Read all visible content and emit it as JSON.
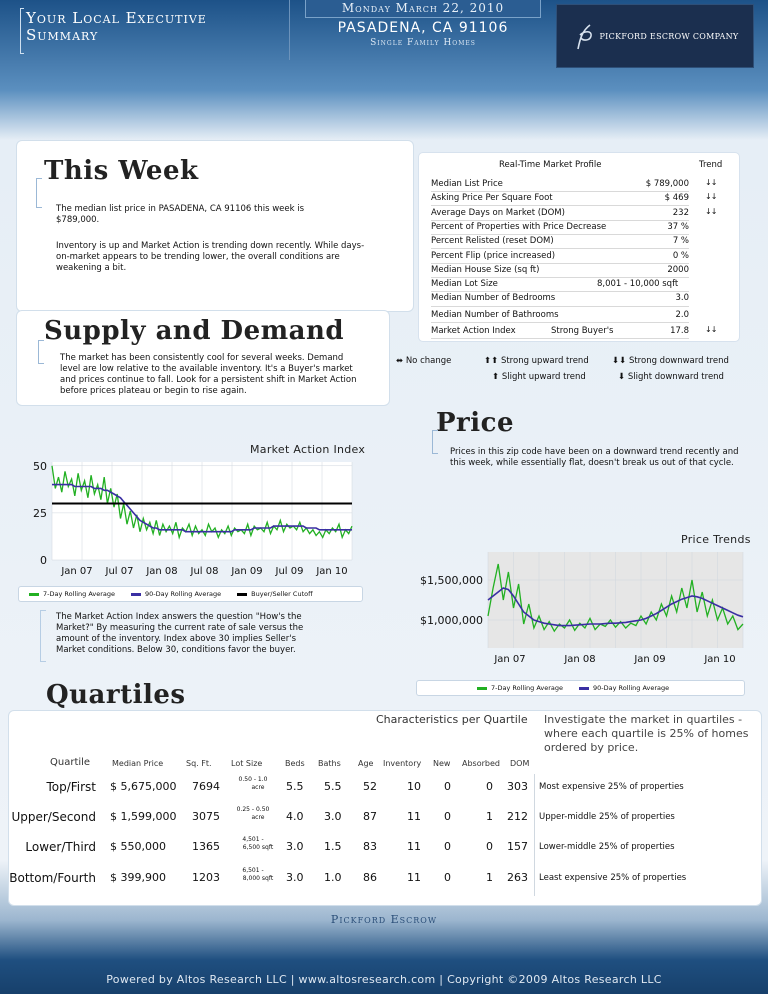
{
  "header": {
    "title_line1": "Your Local Executive",
    "title_line2": "Summary",
    "date": "Monday March 22, 2010",
    "city": "PASADENA, CA 91106",
    "subtitle": "Single Family Homes",
    "logo_text": "PICKFORD ESCROW COMPANY"
  },
  "this_week": {
    "title": "This Week",
    "para1": "The median list price in PASADENA, CA 91106 this week is $789,000.",
    "para2": "Inventory is up and Market Action is trending down recently. While days-on-market appears to be trending lower, the overall conditions are weakening a bit."
  },
  "market_profile": {
    "heading": "Real-Time Market Profile",
    "trend_heading": "Trend",
    "rows": [
      {
        "label": "Median List Price",
        "mid": "",
        "value": "$ 789,000",
        "trend": "↓↓"
      },
      {
        "label": "Asking Price Per Square Foot",
        "mid": "",
        "value": "$ 469",
        "trend": "↓↓"
      },
      {
        "label": "Average Days on Market (DOM)",
        "mid": "",
        "value": "232",
        "trend": "↓↓"
      },
      {
        "label": "Percent of Properties with Price Decrease",
        "mid": "",
        "value": "37 %",
        "trend": ""
      },
      {
        "label": "Percent Relisted (reset DOM)",
        "mid": "",
        "value": "7 %",
        "trend": ""
      },
      {
        "label": "Percent Flip (price increased)",
        "mid": "",
        "value": "0 %",
        "trend": ""
      },
      {
        "label": "Median House Size (sq ft)",
        "mid": "",
        "value": "2000",
        "trend": ""
      },
      {
        "label": "Median Lot Size",
        "mid": "8,001 - 10,000 sqft",
        "value": "",
        "trend": ""
      },
      {
        "label": "Median Number of Bedrooms",
        "mid": "",
        "value": "3.0",
        "trend": ""
      },
      {
        "label": "Median Number of Bathrooms",
        "mid": "",
        "value": "2.0",
        "trend": ""
      },
      {
        "label": "Market Action Index",
        "mid": "Strong Buyer's",
        "value": "17.8",
        "trend": "↓↓"
      }
    ],
    "legend": {
      "no_change": "No change",
      "strong_up": "Strong upward trend",
      "strong_down": "Strong downward trend",
      "slight_up": "Slight upward trend",
      "slight_down": "Slight downward trend"
    }
  },
  "supply_demand": {
    "title": "Supply and Demand",
    "text": "The market has been consistently cool for several weeks. Demand level are low relative to the available inventory. It's a Buyer's market and prices continue to fall. Look for a persistent shift in Market Action before prices plateau or begin to rise again.",
    "note": "The Market Action Index answers the question \"How's the Market?\" By measuring the current rate of sale versus the amount of the inventory. Index above 30 implies Seller's Market conditions. Below 30, conditions favor the buyer."
  },
  "price": {
    "title": "Price",
    "text": "Prices in this zip code have been on a downward trend recently and this week, while essentially flat, doesn't break us out of that cycle."
  },
  "chart_data": [
    {
      "type": "line",
      "title": "Market Action Index",
      "x_ticks": [
        "Jan 07",
        "Jul 07",
        "Jan 08",
        "Jul 08",
        "Jan 09",
        "Jul 09",
        "Jan 10"
      ],
      "y_ticks": [
        "0",
        "25",
        "50"
      ],
      "ylim": [
        0,
        52
      ],
      "series": [
        {
          "name": "7-Day Rolling Average",
          "color": "#22b022",
          "values": [
            50,
            38,
            44,
            36,
            47,
            39,
            43,
            34,
            46,
            37,
            42,
            33,
            45,
            35,
            40,
            32,
            44,
            30,
            38,
            28,
            35,
            22,
            30,
            19,
            26,
            17,
            24,
            15,
            22,
            16,
            20,
            14,
            21,
            13,
            19,
            15,
            18,
            14,
            20,
            12,
            17,
            15,
            19,
            13,
            18,
            14,
            16,
            13,
            19,
            15,
            17,
            12,
            16,
            14,
            18,
            13,
            17,
            15,
            16,
            14,
            19,
            13,
            18,
            16,
            17,
            15,
            20,
            14,
            18,
            16,
            21,
            15,
            19,
            17,
            18,
            16,
            20,
            15,
            17,
            14,
            16,
            13,
            15,
            12,
            16,
            14,
            17,
            15,
            19,
            12,
            16,
            14,
            18
          ]
        },
        {
          "name": "90-Day Rolling Average",
          "color": "#3a2fa3",
          "values": [
            40,
            40,
            40,
            40,
            40,
            40,
            40,
            39,
            39,
            39,
            39,
            39,
            39,
            38,
            38,
            38,
            37,
            37,
            36,
            35,
            34,
            33,
            31,
            29,
            27,
            25,
            23,
            21,
            20,
            19,
            18,
            17,
            17,
            16,
            16,
            16,
            16,
            16,
            16,
            16,
            16,
            15,
            15,
            15,
            15,
            15,
            15,
            15,
            15,
            15,
            15,
            15,
            15,
            15,
            15,
            15,
            16,
            16,
            16,
            16,
            16,
            16,
            17,
            17,
            17,
            17,
            17,
            17,
            18,
            18,
            18,
            18,
            18,
            18,
            18,
            18,
            18,
            18,
            17,
            17,
            17,
            17,
            16,
            16,
            16,
            16,
            16,
            16,
            16,
            16,
            16,
            16,
            16
          ]
        },
        {
          "name": "Buyer/Seller Cutoff",
          "color": "#000000",
          "values": [
            30,
            30
          ]
        }
      ]
    },
    {
      "type": "line",
      "title": "Price Trends",
      "x_ticks": [
        "Jan 07",
        "Jan 08",
        "Jan 09",
        "Jan 10"
      ],
      "y_ticks": [
        "$1,000,000",
        "$1,500,000"
      ],
      "ylim": [
        650000,
        1850000
      ],
      "series": [
        {
          "name": "7-Day Rolling Average",
          "color": "#22b022",
          "values": [
            1050000,
            1400000,
            1700000,
            1250000,
            1600000,
            1150000,
            1450000,
            950000,
            1200000,
            900000,
            1050000,
            880000,
            980000,
            860000,
            950000,
            900000,
            1000000,
            870000,
            960000,
            900000,
            1020000,
            880000,
            950000,
            920000,
            1000000,
            910000,
            980000,
            900000,
            960000,
            930000,
            1050000,
            950000,
            1100000,
            1000000,
            1200000,
            1050000,
            1300000,
            1100000,
            1400000,
            1150000,
            1500000,
            1100000,
            1350000,
            1050000,
            1250000,
            1000000,
            1150000,
            950000,
            1050000,
            880000,
            950000
          ]
        },
        {
          "name": "90-Day Rolling Average",
          "color": "#3a2fa3",
          "values": [
            1250000,
            1300000,
            1350000,
            1400000,
            1380000,
            1300000,
            1200000,
            1100000,
            1050000,
            1000000,
            980000,
            960000,
            950000,
            940000,
            930000,
            930000,
            930000,
            935000,
            940000,
            945000,
            950000,
            950000,
            950000,
            955000,
            960000,
            960000,
            965000,
            970000,
            980000,
            990000,
            1000000,
            1020000,
            1050000,
            1080000,
            1120000,
            1160000,
            1200000,
            1230000,
            1260000,
            1280000,
            1300000,
            1290000,
            1270000,
            1240000,
            1210000,
            1180000,
            1150000,
            1120000,
            1090000,
            1060000,
            1040000
          ]
        }
      ]
    }
  ],
  "quartiles": {
    "title": "Quartiles",
    "characteristics_heading": "Characteristics per Quartile",
    "investigate": "Investigate the market in quartiles - where each quartile is 25% of homes ordered by price.",
    "columns": {
      "quartile": "Quartile",
      "median_price": "Median Price",
      "sqft": "Sq. Ft.",
      "lot": "Lot Size",
      "beds": "Beds",
      "baths": "Baths",
      "age": "Age",
      "inventory": "Inventory",
      "new": "New",
      "absorbed": "Absorbed",
      "dom": "DOM"
    },
    "rows": [
      {
        "name": "Top/First",
        "price": "$ 5,675,000",
        "sqft": "7694",
        "lot1": "0.50 - 1.0",
        "lot2": "acre",
        "beds": "5.5",
        "baths": "5.5",
        "age": "52",
        "inventory": "10",
        "new": "0",
        "absorbed": "0",
        "dom": "303",
        "desc": "Most expensive 25% of properties"
      },
      {
        "name": "Upper/Second",
        "price": "$ 1,599,000",
        "sqft": "3075",
        "lot1": "0.25 - 0.50",
        "lot2": "acre",
        "beds": "4.0",
        "baths": "3.0",
        "age": "87",
        "inventory": "11",
        "new": "0",
        "absorbed": "1",
        "dom": "212",
        "desc": "Upper-middle 25% of properties"
      },
      {
        "name": "Lower/Third",
        "price": "$ 550,000",
        "sqft": "1365",
        "lot1": "4,501 -",
        "lot2": "6,500 sqft",
        "beds": "3.0",
        "baths": "1.5",
        "age": "83",
        "inventory": "11",
        "new": "0",
        "absorbed": "0",
        "dom": "157",
        "desc": "Lower-middle 25% of properties"
      },
      {
        "name": "Bottom/Fourth",
        "price": "$ 399,900",
        "sqft": "1203",
        "lot1": "6,501 -",
        "lot2": "8,000 sqft",
        "beds": "3.0",
        "baths": "1.0",
        "age": "86",
        "inventory": "11",
        "new": "0",
        "absorbed": "1",
        "dom": "263",
        "desc": "Least expensive 25% of properties"
      }
    ]
  },
  "footer": {
    "company": "Pickford Escrow",
    "powered": "Powered by Altos Research LLC | www.altosresearch.com | Copyright ©2009 Altos Research LLC"
  }
}
